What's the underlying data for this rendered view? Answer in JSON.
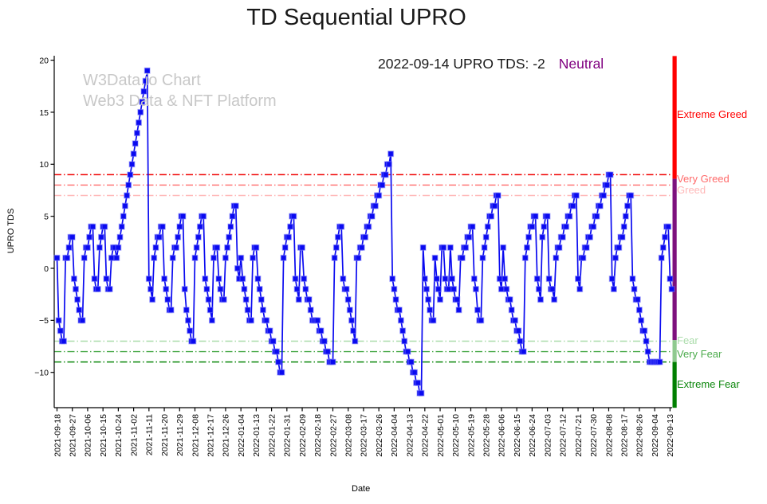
{
  "page_title": "TD Sequential UPRO",
  "watermark": {
    "line1": "W3Data.io Chart",
    "line2": "Web3 Data & NFT Platform"
  },
  "annotation": {
    "label": "2022-09-14 UPRO TDS: -2",
    "status": "Neutral",
    "status_color": "#800080"
  },
  "axis": {
    "ylabel": "UPRO TDS",
    "xlabel": "Date"
  },
  "chart_data": {
    "type": "line",
    "title": "TD Sequential UPRO",
    "xlabel": "Date",
    "ylabel": "UPRO TDS",
    "x_start_date": "2021-09-18",
    "x_end_date": "2022-09-14",
    "x_tick_interval_days": 9,
    "x_tick_labels": [
      "2021-09-18",
      "2021-09-27",
      "2021-10-06",
      "2021-10-15",
      "2021-10-24",
      "2021-11-02",
      "2021-11-11",
      "2021-11-20",
      "2021-11-29",
      "2021-12-08",
      "2021-12-17",
      "2021-12-26",
      "2022-01-04",
      "2022-01-13",
      "2022-01-22",
      "2022-01-31",
      "2022-02-09",
      "2022-02-18",
      "2022-02-27",
      "2022-03-08",
      "2022-03-17",
      "2022-03-26",
      "2022-04-04",
      "2022-04-13",
      "2022-04-22",
      "2022-05-01",
      "2022-05-10",
      "2022-05-19",
      "2022-05-28",
      "2022-06-06",
      "2022-06-15",
      "2022-06-24",
      "2022-07-03",
      "2022-07-12",
      "2022-07-21",
      "2022-07-30",
      "2022-08-08",
      "2022-08-17",
      "2022-08-26",
      "2022-09-04",
      "2022-09-13"
    ],
    "yticks": [
      20,
      15,
      10,
      5,
      0,
      -5,
      -10
    ],
    "ylim": [
      -13.4,
      20.4
    ],
    "grid": false,
    "line_color": "#0a0af0",
    "marker": "square",
    "series_name": "UPRO TDS",
    "values": [
      1,
      -5,
      -6,
      -7,
      -7,
      1,
      1,
      2,
      3,
      3,
      -1,
      -2,
      -3,
      -4,
      -5,
      -5,
      1,
      2,
      2,
      3,
      4,
      4,
      -1,
      -2,
      -2,
      2,
      3,
      4,
      4,
      -1,
      -2,
      -2,
      1,
      2,
      2,
      1,
      2,
      3,
      4,
      5,
      6,
      7,
      8,
      9,
      10,
      11,
      12,
      13,
      14,
      15,
      16,
      17,
      18,
      19,
      -1,
      -2,
      -3,
      1,
      2,
      3,
      3,
      4,
      4,
      -1,
      -2,
      -3,
      -4,
      -4,
      1,
      2,
      2,
      3,
      4,
      5,
      5,
      -2,
      -4,
      -5,
      -6,
      -7,
      -7,
      1,
      2,
      3,
      4,
      5,
      5,
      -1,
      -2,
      -3,
      -4,
      -5,
      1,
      2,
      2,
      -1,
      -2,
      -3,
      -3,
      1,
      2,
      3,
      4,
      5,
      6,
      6,
      0,
      -1,
      1,
      -1,
      -2,
      -3,
      -4,
      -5,
      -5,
      1,
      2,
      2,
      -1,
      -2,
      -3,
      -4,
      -5,
      -5,
      -6,
      -6,
      -7,
      -7,
      -8,
      -8,
      -9,
      -10,
      -10,
      1,
      2,
      3,
      3,
      4,
      5,
      5,
      -1,
      -2,
      -3,
      2,
      2,
      -1,
      -2,
      -3,
      -3,
      -4,
      -5,
      -5,
      -5,
      -5,
      -6,
      -6,
      -7,
      -7,
      -8,
      -8,
      -9,
      -9,
      -9,
      1,
      2,
      3,
      4,
      4,
      -1,
      -2,
      -2,
      -3,
      -4,
      -5,
      -6,
      -7,
      1,
      1,
      2,
      2,
      3,
      3,
      4,
      4,
      5,
      5,
      6,
      6,
      7,
      7,
      8,
      8,
      9,
      9,
      10,
      10,
      11,
      -1,
      -2,
      -3,
      -4,
      -4,
      -5,
      -6,
      -7,
      -8,
      -8,
      -9,
      -9,
      -10,
      -10,
      -11,
      -11,
      -12,
      -12,
      2,
      -1,
      -2,
      -3,
      -4,
      -5,
      -5,
      1,
      -1,
      -2,
      -3,
      2,
      2,
      -1,
      -2,
      -2,
      2,
      -1,
      -2,
      -3,
      -3,
      -4,
      1,
      1,
      2,
      2,
      3,
      3,
      4,
      4,
      -1,
      -2,
      -4,
      -5,
      -5,
      1,
      2,
      3,
      4,
      5,
      5,
      6,
      6,
      7,
      7,
      -1,
      -2,
      2,
      -1,
      -2,
      -3,
      -3,
      -4,
      -5,
      -5,
      -6,
      -6,
      -7,
      -8,
      -8,
      1,
      2,
      3,
      4,
      4,
      5,
      5,
      -1,
      -2,
      -3,
      3,
      4,
      5,
      5,
      -1,
      -2,
      -2,
      -3,
      1,
      2,
      2,
      3,
      3,
      4,
      4,
      5,
      5,
      6,
      6,
      7,
      7,
      -1,
      -2,
      1,
      1,
      2,
      2,
      3,
      3,
      4,
      4,
      5,
      5,
      6,
      6,
      7,
      7,
      8,
      8,
      9,
      9,
      -1,
      -2,
      1,
      2,
      2,
      3,
      3,
      4,
      5,
      6,
      7,
      7,
      -1,
      -2,
      -3,
      -3,
      -4,
      -5,
      -6,
      -6,
      -7,
      -8,
      -9,
      -9,
      -9,
      -9,
      -9,
      -9,
      -9,
      1,
      2,
      3,
      4,
      4,
      -1,
      -2
    ],
    "threshold_lines": [
      {
        "value": 9,
        "color": "#f00000"
      },
      {
        "value": 8,
        "color": "#ff6b6b"
      },
      {
        "value": 7,
        "color": "#ffb8b8"
      },
      {
        "value": -7,
        "color": "#abdcab"
      },
      {
        "value": -8,
        "color": "#4cab4c"
      },
      {
        "value": -9,
        "color": "#0c870c"
      }
    ],
    "zone_labels": [
      {
        "label": "Extreme Greed",
        "value": 14.8,
        "color": "#ff0000"
      },
      {
        "label": "Very Greed",
        "value": 8.6,
        "color": "#ff6b6b"
      },
      {
        "label": "Greed",
        "value": 7.5,
        "color": "#ffb8b8"
      },
      {
        "label": "Fear",
        "value": -7.0,
        "color": "#abdcab"
      },
      {
        "label": "Very Fear",
        "value": -8.3,
        "color": "#4cab4c"
      },
      {
        "label": "Extreme Fear",
        "value": -11.2,
        "color": "#0c870c"
      }
    ],
    "right_bar_segments": [
      {
        "from": 20.4,
        "to": 8.6,
        "color": "#ff0000"
      },
      {
        "from": 8.6,
        "to": -6.9,
        "color": "#7d107d"
      },
      {
        "from": -6.9,
        "to": -9.0,
        "color": "#8fca8f"
      },
      {
        "from": -9.0,
        "to": -13.4,
        "color": "#017f01"
      }
    ],
    "last_point": {
      "date": "2022-09-14",
      "value": -2,
      "status": "Neutral"
    }
  }
}
